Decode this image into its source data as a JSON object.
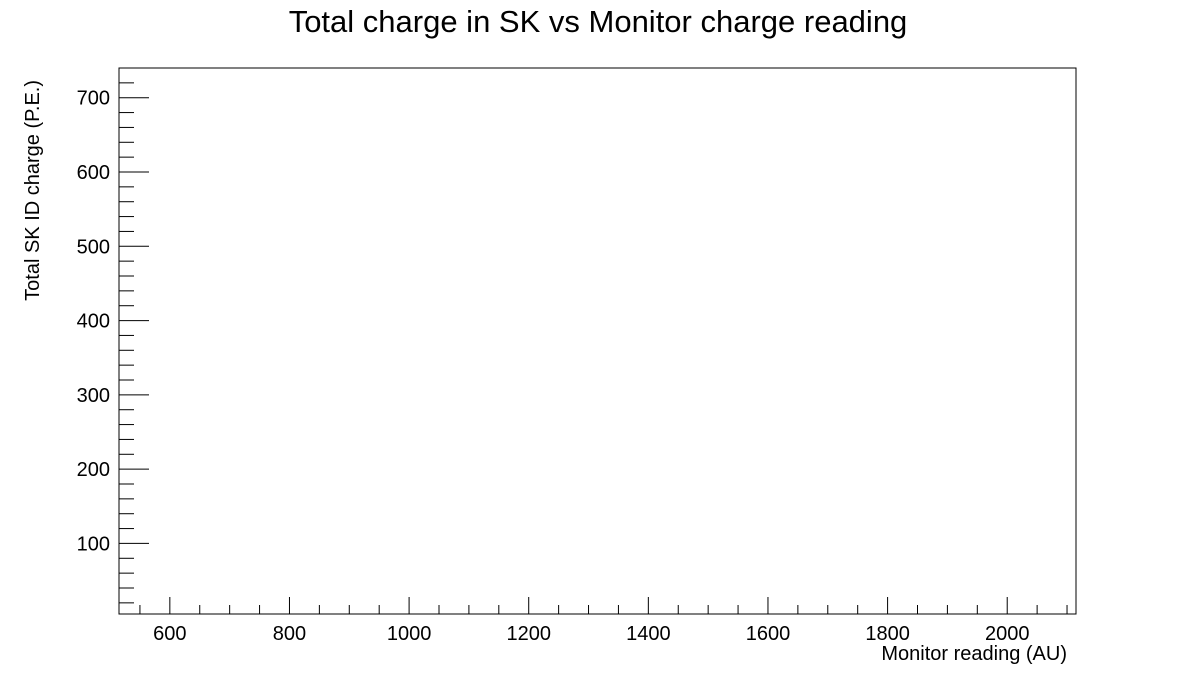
{
  "chart_data": {
    "type": "scatter",
    "title": "Total charge in SK vs Monitor charge reading",
    "xlabel": "Monitor reading (AU)",
    "ylabel": "Total SK ID charge (P.E.)",
    "xlim": [
      515,
      2115
    ],
    "ylim": [
      5,
      740
    ],
    "x_major_ticks": [
      600,
      800,
      1000,
      1200,
      1400,
      1600,
      1800,
      2000
    ],
    "x_minor_step": 50,
    "y_major_ticks": [
      100,
      200,
      300,
      400,
      500,
      600,
      700
    ],
    "y_minor_step": 20,
    "grid": false,
    "legend": "none",
    "series": []
  }
}
